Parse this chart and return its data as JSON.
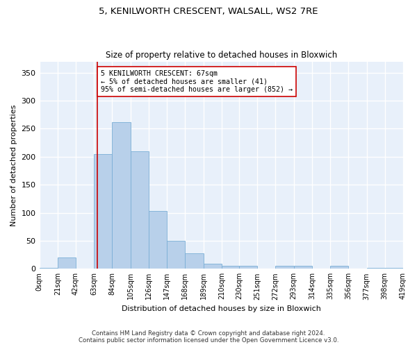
{
  "title": "5, KENILWORTH CRESCENT, WALSALL, WS2 7RE",
  "subtitle": "Size of property relative to detached houses in Bloxwich",
  "xlabel": "Distribution of detached houses by size in Bloxwich",
  "ylabel": "Number of detached properties",
  "bar_color": "#b8d0ea",
  "bar_edge_color": "#7aaed6",
  "background_color": "#e8f0fa",
  "grid_color": "#ffffff",
  "bin_edges": [
    0,
    21,
    42,
    63,
    84,
    105,
    126,
    147,
    168,
    189,
    210,
    230,
    251,
    272,
    293,
    314,
    335,
    356,
    377,
    398,
    419
  ],
  "bar_heights": [
    2,
    20,
    0,
    205,
    262,
    210,
    103,
    50,
    28,
    9,
    5,
    5,
    0,
    5,
    5,
    0,
    5,
    0,
    2,
    2
  ],
  "tick_labels": [
    "0sqm",
    "21sqm",
    "42sqm",
    "63sqm",
    "84sqm",
    "105sqm",
    "126sqm",
    "147sqm",
    "168sqm",
    "189sqm",
    "210sqm",
    "230sqm",
    "251sqm",
    "272sqm",
    "293sqm",
    "314sqm",
    "335sqm",
    "356sqm",
    "377sqm",
    "398sqm",
    "419sqm"
  ],
  "ylim": [
    0,
    370
  ],
  "yticks": [
    0,
    50,
    100,
    150,
    200,
    250,
    300,
    350
  ],
  "annotation_text": "5 KENILWORTH CRESCENT: 67sqm\n← 5% of detached houses are smaller (41)\n95% of semi-detached houses are larger (852) →",
  "vline_x": 67,
  "vline_color": "#cc0000",
  "annotation_box_edge_color": "#cc0000",
  "footer_line1": "Contains HM Land Registry data © Crown copyright and database right 2024.",
  "footer_line2": "Contains public sector information licensed under the Open Government Licence v3.0."
}
